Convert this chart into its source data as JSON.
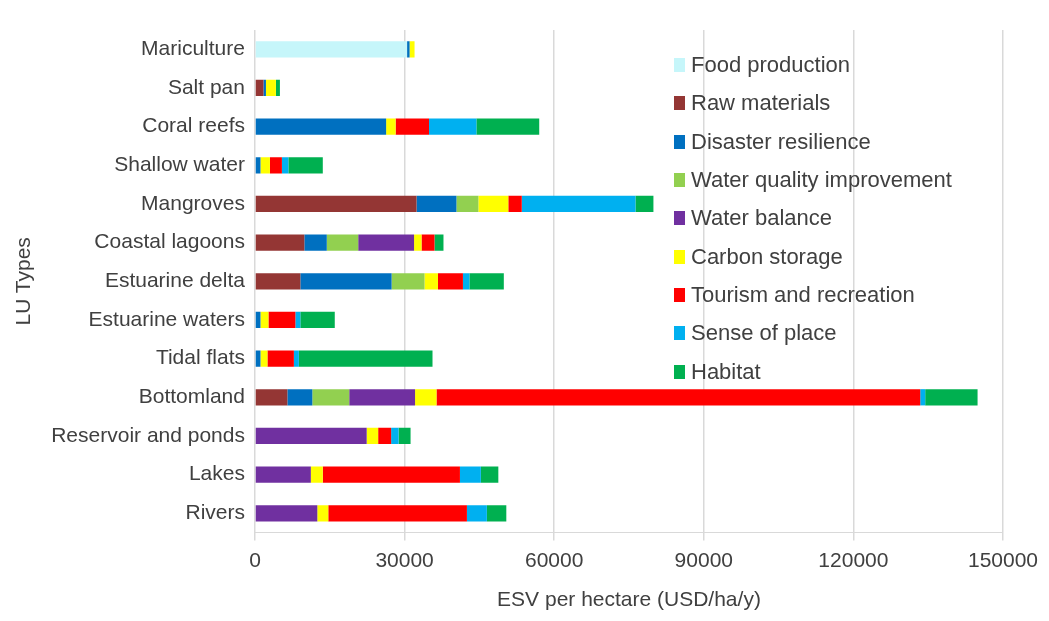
{
  "chart_data": {
    "type": "bar",
    "orientation": "horizontal",
    "stacked": true,
    "xlabel": "ESV per hectare (USD/ha/y)",
    "ylabel": "LU Types",
    "categories": [
      "Mariculture",
      "Salt pan",
      "Coral reefs",
      "Shallow water",
      "Mangroves",
      "Coastal lagoons",
      "Estuarine delta",
      "Estuarine waters",
      "Tidal flats",
      "Bottomland",
      "Reservoir and ponds",
      "Lakes",
      "Rivers"
    ],
    "series": [
      {
        "name": "Food production",
        "color": "#c6f6fa",
        "values": [
          30500,
          null,
          null,
          null,
          null,
          null,
          null,
          null,
          null,
          null,
          null,
          null,
          null
        ]
      },
      {
        "name": "Raw materials",
        "color": "#943634",
        "values": [
          null,
          1700,
          null,
          null,
          32400,
          9900,
          9100,
          null,
          null,
          6500,
          null,
          null,
          null
        ]
      },
      {
        "name": "Disaster resilience",
        "color": "#0070c0",
        "values": [
          500,
          500,
          26300,
          1100,
          8000,
          4500,
          18300,
          1100,
          1100,
          5000,
          null,
          null,
          null
        ]
      },
      {
        "name": "Water quality improvement",
        "color": "#92d050",
        "values": [
          null,
          null,
          null,
          null,
          4400,
          6300,
          6600,
          null,
          null,
          7400,
          null,
          null,
          null
        ]
      },
      {
        "name": "Water balance",
        "color": "#7030a0",
        "values": [
          null,
          null,
          null,
          null,
          null,
          11200,
          null,
          null,
          null,
          13200,
          22400,
          11200,
          12500
        ]
      },
      {
        "name": "Carbon storage",
        "color": "#ffff00",
        "values": [
          1000,
          2000,
          1900,
          1900,
          6000,
          1500,
          2700,
          1600,
          1400,
          4300,
          2300,
          2400,
          2200
        ]
      },
      {
        "name": "Tourism and recreation",
        "color": "#ff0000",
        "values": [
          null,
          null,
          6700,
          2400,
          2700,
          2600,
          5000,
          5400,
          5300,
          97000,
          2600,
          27500,
          27800
        ]
      },
      {
        "name": "Sense of place",
        "color": "#00b0f0",
        "values": [
          null,
          null,
          9500,
          1300,
          22800,
          null,
          1300,
          1000,
          1000,
          1000,
          1500,
          4200,
          4000
        ]
      },
      {
        "name": "Habitat",
        "color": "#00b050",
        "values": [
          null,
          800,
          12600,
          6900,
          3600,
          1800,
          6900,
          6900,
          26800,
          10500,
          2400,
          3500,
          3900
        ]
      }
    ],
    "xlim": [
      0,
      150000
    ],
    "xticks": [
      0,
      30000,
      60000,
      90000,
      120000,
      150000
    ],
    "grid": "x",
    "legend": "top right"
  }
}
